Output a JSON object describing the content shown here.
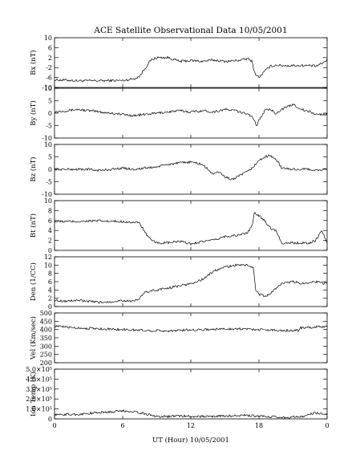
{
  "title": "ACE Satellite Observational Data   10/05/2001",
  "xlabel": "UT (Hour)   10/05/2001",
  "x_tick_labels": [
    "0",
    "6",
    "12",
    "18",
    "0"
  ],
  "colors": {
    "line": "#000000",
    "background": "#ffffff"
  },
  "chart_data": [
    {
      "type": "line",
      "ylabel": "Bx (nT)",
      "ylim": [
        -10,
        10
      ],
      "ytick_labels": [
        "-10",
        "-6",
        "-2",
        "2",
        "6",
        "10"
      ],
      "x": [
        0,
        1,
        2,
        3,
        4,
        5,
        6,
        7,
        7.5,
        8,
        8.5,
        9,
        10,
        11,
        12,
        13,
        14,
        15,
        16,
        17,
        17.4,
        17.6,
        18,
        18.5,
        19,
        19.5,
        20,
        21,
        22,
        22.5,
        23,
        23.5,
        24
      ],
      "y": [
        -7,
        -7,
        -7.3,
        -7.3,
        -7.3,
        -7.2,
        -7.2,
        -6.5,
        -5.5,
        -2,
        1,
        2,
        2,
        0.5,
        0.8,
        0.5,
        1,
        0.5,
        0.8,
        1.5,
        0.5,
        -4,
        -6,
        -3.5,
        -1.5,
        -1,
        -1.2,
        -1.2,
        -1.2,
        -1.2,
        -1.5,
        -0.5,
        1
      ]
    },
    {
      "type": "line",
      "ylabel": "By (nT)",
      "ylim": [
        -10,
        10
      ],
      "ytick_labels": [
        "-10",
        "-5",
        "0",
        "5",
        "10"
      ],
      "x": [
        0,
        1,
        2,
        3,
        4,
        5,
        6,
        7,
        8,
        9,
        10,
        11,
        12,
        13,
        14,
        15,
        16,
        16.5,
        17,
        17.5,
        17.8,
        18,
        18.5,
        19,
        19.5,
        20,
        21,
        22,
        22.5,
        23,
        24
      ],
      "y": [
        0.5,
        1,
        1.5,
        1,
        0.5,
        0,
        -0.5,
        -1,
        -0.5,
        0,
        0.5,
        1,
        0.5,
        1,
        0.5,
        1.5,
        1,
        0,
        0,
        -2,
        -5,
        -3,
        1,
        1.5,
        0,
        1.5,
        3.5,
        1,
        0.5,
        -0.5,
        -0.5
      ]
    },
    {
      "type": "line",
      "ylabel": "Bz (nT)",
      "ylim": [
        -10,
        10
      ],
      "ytick_labels": [
        "-10",
        "-5",
        "0",
        "5",
        "10"
      ],
      "x": [
        0,
        1,
        2,
        3,
        4,
        5,
        6,
        7,
        8,
        9,
        10,
        11,
        12,
        13,
        13.5,
        14,
        14.5,
        15,
        15.5,
        16,
        16.5,
        17,
        17.5,
        18,
        18.5,
        19,
        19.5,
        20,
        21,
        22,
        22.5,
        23,
        24
      ],
      "y": [
        0,
        0,
        0,
        0,
        -0.5,
        0,
        0.5,
        0,
        0.5,
        1,
        2,
        2.5,
        3,
        2,
        0,
        -2,
        -1,
        -3,
        -4,
        -3.5,
        -2,
        -1,
        1,
        3.5,
        5,
        5.5,
        4,
        0.5,
        0,
        0,
        0,
        -0.5,
        0
      ]
    },
    {
      "type": "line",
      "ylabel": "Bt (nT)",
      "ylim": [
        0,
        10
      ],
      "ytick_labels": [
        "0",
        "2",
        "4",
        "6",
        "8",
        "10"
      ],
      "x": [
        0,
        1,
        2,
        3,
        4,
        5,
        6,
        7,
        7.5,
        8,
        8.5,
        9,
        10,
        11,
        12,
        13,
        14,
        15,
        16,
        17,
        17.4,
        17.6,
        18,
        18.5,
        19,
        19.5,
        20,
        21,
        22,
        22.5,
        23,
        23.5,
        24
      ],
      "y": [
        5.8,
        5.8,
        5.8,
        5.9,
        5.9,
        5.8,
        5.8,
        5.6,
        5.5,
        3.5,
        2,
        1.5,
        1.5,
        1.8,
        1.3,
        1.8,
        2,
        2.8,
        3,
        3.5,
        5,
        7.5,
        7,
        6,
        4.5,
        4,
        1.5,
        1.5,
        1.5,
        1.5,
        2,
        4,
        1.5
      ]
    },
    {
      "type": "line",
      "ylabel": "Den (1/CC)",
      "ylim": [
        0,
        12
      ],
      "ytick_labels": [
        "0",
        "2",
        "4",
        "6",
        "8",
        "10",
        "12"
      ],
      "x": [
        0,
        1,
        2,
        3,
        4,
        5,
        6,
        7,
        7.5,
        8,
        9,
        10,
        11,
        12,
        13,
        14,
        15,
        16,
        17,
        17.5,
        17.7,
        18,
        18.5,
        19,
        19.5,
        20,
        21,
        22,
        22.5,
        23,
        24
      ],
      "y": [
        1.5,
        1.3,
        1.5,
        1.2,
        1,
        1.2,
        1.5,
        1.2,
        2,
        3.5,
        4,
        4.5,
        5,
        5.5,
        6.5,
        8.5,
        9.5,
        10,
        10,
        9.5,
        4,
        3,
        2.5,
        3,
        4.5,
        5.5,
        6,
        5.5,
        6,
        6,
        5.5
      ]
    },
    {
      "type": "line",
      "ylabel": "Vel (Km/sec)",
      "ylim": [
        200,
        500
      ],
      "ytick_labels": [
        "200",
        "250",
        "300",
        "350",
        "400",
        "450",
        "500"
      ],
      "x": [
        0,
        2,
        4,
        6,
        8,
        10,
        12,
        14,
        16,
        18,
        20,
        21.5,
        21.6,
        22,
        23,
        24
      ],
      "y": [
        420,
        410,
        405,
        400,
        395,
        392,
        398,
        402,
        405,
        400,
        395,
        395,
        410,
        410,
        415,
        420
      ]
    },
    {
      "type": "line",
      "ylabel": "Ion Temp (K)",
      "ylim": [
        0,
        500000
      ],
      "ytick_labels": [
        "0",
        "1.0×10⁵",
        "2.0×10⁵",
        "3.0×10⁵",
        "4.0×10⁵",
        "5.0×10⁵"
      ],
      "x": [
        0,
        1,
        2,
        3,
        4,
        5,
        6,
        7,
        8,
        9,
        10,
        11,
        12,
        13,
        14,
        15,
        16,
        17,
        18,
        19,
        20,
        21,
        22,
        22.5,
        23,
        24
      ],
      "y": [
        40000,
        45000,
        45000,
        55000,
        65000,
        70000,
        80000,
        75000,
        50000,
        25000,
        25000,
        30000,
        25000,
        25000,
        25000,
        30000,
        30000,
        35000,
        25000,
        20000,
        15000,
        20000,
        20000,
        50000,
        60000,
        50000
      ]
    }
  ]
}
